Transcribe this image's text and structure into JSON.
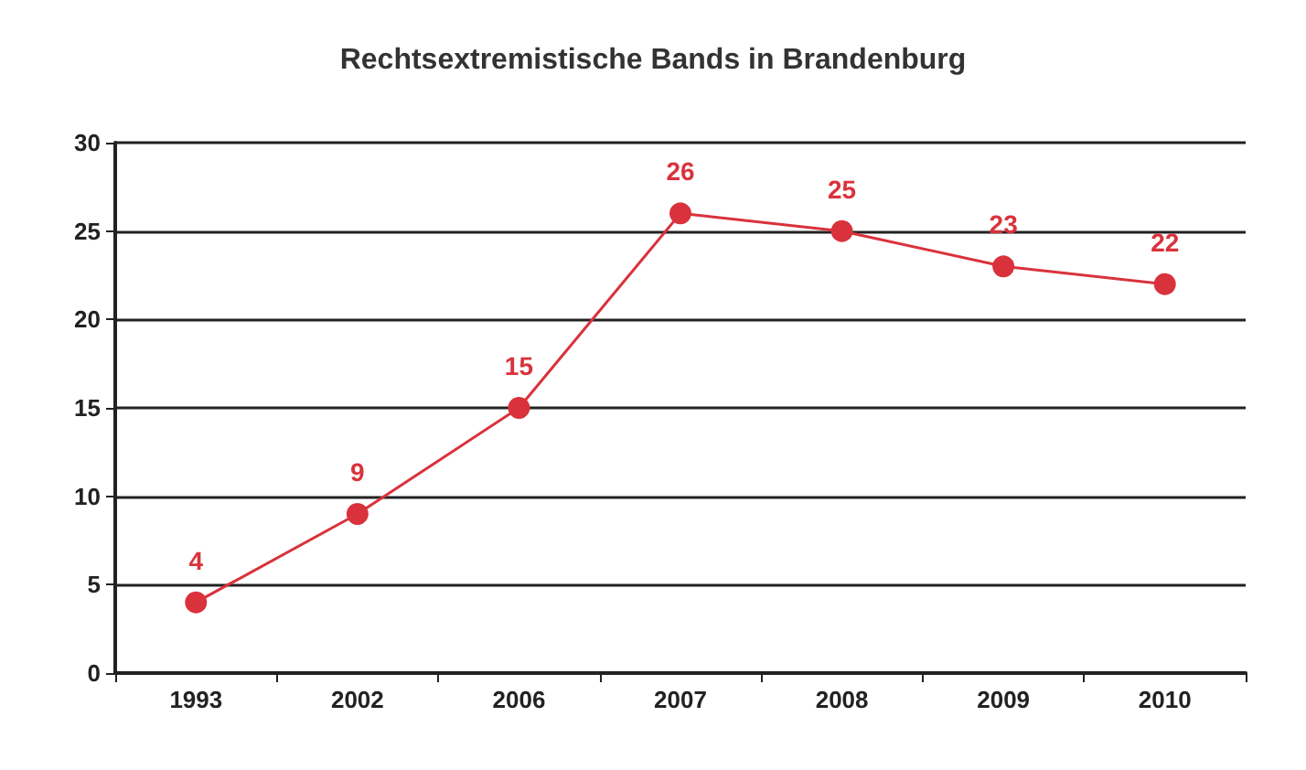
{
  "chart_data": {
    "type": "line",
    "title": "Rechtsextremistische Bands in Brandenburg",
    "categories": [
      "1993",
      "2002",
      "2006",
      "2007",
      "2008",
      "2009",
      "2010"
    ],
    "series": [
      {
        "color": "#d9323c",
        "values": [
          4,
          9,
          15,
          26,
          25,
          23,
          22
        ]
      }
    ],
    "ylim": [
      0,
      30
    ],
    "yticks": [
      0,
      5,
      10,
      15,
      20,
      25,
      30
    ],
    "grid": "y",
    "marker": "circle",
    "line_style": "solid",
    "data_labels": true
  }
}
